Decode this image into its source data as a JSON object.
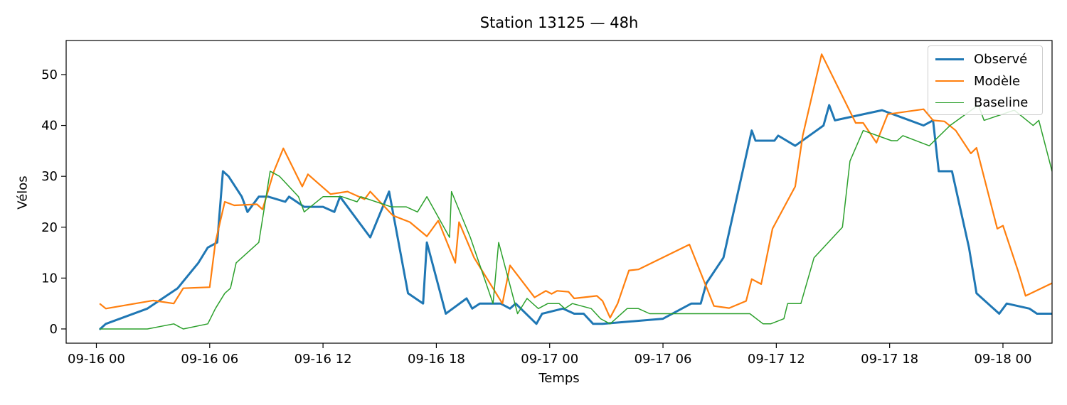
{
  "chart_data": {
    "type": "line",
    "title": "Station 13125 — 48h",
    "xlabel": "Temps",
    "ylabel": "Vélos",
    "x_unit": "hours",
    "xlim": [
      -1.6,
      50.6
    ],
    "ylim": [
      -2.8,
      56.7
    ],
    "x_ticks": [
      {
        "value": 0,
        "label": "09-16 00"
      },
      {
        "value": 6,
        "label": "09-16 06"
      },
      {
        "value": 12,
        "label": "09-16 12"
      },
      {
        "value": 18,
        "label": "09-16 18"
      },
      {
        "value": 24,
        "label": "09-17 00"
      },
      {
        "value": 30,
        "label": "09-17 06"
      },
      {
        "value": 36,
        "label": "09-17 12"
      },
      {
        "value": 42,
        "label": "09-17 18"
      },
      {
        "value": 48,
        "label": "09-18 00"
      }
    ],
    "y_ticks": [
      0,
      10,
      20,
      30,
      40,
      50
    ],
    "grid": false,
    "legend_position": "top-right",
    "series": [
      {
        "name": "Observé",
        "color": "#1f77b4",
        "width": 3,
        "points": [
          [
            0.2,
            0
          ],
          [
            0.5,
            1
          ],
          [
            2.7,
            4
          ],
          [
            4.3,
            8
          ],
          [
            5.4,
            13
          ],
          [
            5.9,
            16
          ],
          [
            6.4,
            17
          ],
          [
            6.7,
            31
          ],
          [
            7,
            30
          ],
          [
            7.7,
            26
          ],
          [
            8,
            23
          ],
          [
            8.6,
            26
          ],
          [
            9.1,
            26
          ],
          [
            10,
            25
          ],
          [
            10.2,
            26
          ],
          [
            11,
            24
          ],
          [
            12,
            24
          ],
          [
            12.6,
            23
          ],
          [
            12.9,
            26
          ],
          [
            14.5,
            18
          ],
          [
            15.5,
            27
          ],
          [
            16.5,
            7
          ],
          [
            17.3,
            5
          ],
          [
            17.5,
            17
          ],
          [
            18.5,
            3
          ],
          [
            19.6,
            6
          ],
          [
            19.9,
            4
          ],
          [
            20.3,
            5
          ],
          [
            21.4,
            5
          ],
          [
            21.9,
            4
          ],
          [
            22.2,
            5
          ],
          [
            23.3,
            1
          ],
          [
            23.6,
            3
          ],
          [
            24.7,
            4
          ],
          [
            25.3,
            3
          ],
          [
            25.8,
            3
          ],
          [
            26.3,
            1
          ],
          [
            26.8,
            1
          ],
          [
            30,
            2
          ],
          [
            31.5,
            5
          ],
          [
            32,
            5
          ],
          [
            32.3,
            9
          ],
          [
            33.2,
            14
          ],
          [
            34.7,
            39
          ],
          [
            34.9,
            37
          ],
          [
            35.9,
            37
          ],
          [
            36.1,
            38
          ],
          [
            37,
            36
          ],
          [
            38.5,
            40
          ],
          [
            38.8,
            44
          ],
          [
            39.1,
            41
          ],
          [
            41.6,
            43
          ],
          [
            43.8,
            40
          ],
          [
            44.3,
            41
          ],
          [
            44.6,
            31
          ],
          [
            45.3,
            31
          ],
          [
            46.2,
            16
          ],
          [
            46.6,
            7
          ],
          [
            47.8,
            3
          ],
          [
            48.2,
            5
          ],
          [
            49.4,
            4
          ],
          [
            49.8,
            3
          ],
          [
            50.6,
            3
          ]
        ]
      },
      {
        "name": "Modèle",
        "color": "#ff7f0e",
        "width": 2.2,
        "points": [
          [
            0.2,
            4.9
          ],
          [
            0.5,
            4
          ],
          [
            3,
            5.6
          ],
          [
            4.1,
            5
          ],
          [
            4.6,
            8
          ],
          [
            6,
            8.2
          ],
          [
            6.3,
            17
          ],
          [
            6.8,
            25
          ],
          [
            7.3,
            24.3
          ],
          [
            8.5,
            24.5
          ],
          [
            8.8,
            23.5
          ],
          [
            9.4,
            31
          ],
          [
            9.9,
            35.5
          ],
          [
            10.9,
            28
          ],
          [
            11.2,
            30.4
          ],
          [
            12.4,
            26.5
          ],
          [
            13.3,
            27
          ],
          [
            14.2,
            25.5
          ],
          [
            14.5,
            27
          ],
          [
            15.7,
            22.3
          ],
          [
            16.6,
            21
          ],
          [
            17.5,
            18.2
          ],
          [
            18.1,
            21.3
          ],
          [
            19,
            13
          ],
          [
            19.2,
            21
          ],
          [
            20,
            14
          ],
          [
            21.5,
            5
          ],
          [
            21.9,
            12.5
          ],
          [
            23.2,
            6.2
          ],
          [
            23.8,
            7.5
          ],
          [
            24.1,
            6.9
          ],
          [
            24.4,
            7.5
          ],
          [
            25,
            7.3
          ],
          [
            25.3,
            6
          ],
          [
            26.5,
            6.5
          ],
          [
            26.8,
            5.5
          ],
          [
            27.2,
            2.2
          ],
          [
            27.6,
            5
          ],
          [
            28.2,
            11.5
          ],
          [
            28.7,
            11.7
          ],
          [
            31.4,
            16.6
          ],
          [
            32.7,
            4.5
          ],
          [
            33.5,
            4.1
          ],
          [
            34.4,
            5.5
          ],
          [
            34.7,
            9.8
          ],
          [
            35.2,
            8.8
          ],
          [
            35.8,
            19.7
          ],
          [
            37,
            28
          ],
          [
            37.4,
            38
          ],
          [
            38.4,
            54
          ],
          [
            40.2,
            40.5
          ],
          [
            40.6,
            40.5
          ],
          [
            41.3,
            36.6
          ],
          [
            41.9,
            42.2
          ],
          [
            43.8,
            43.2
          ],
          [
            44.3,
            41
          ],
          [
            44.9,
            40.8
          ],
          [
            45.5,
            39
          ],
          [
            46.3,
            34.5
          ],
          [
            46.6,
            35.6
          ],
          [
            47.7,
            19.7
          ],
          [
            48,
            20.3
          ],
          [
            48.8,
            11.4
          ],
          [
            49.2,
            6.5
          ],
          [
            50.6,
            9
          ]
        ]
      },
      {
        "name": "Baseline",
        "color": "#2ca02c",
        "width": 1.5,
        "points": [
          [
            0.2,
            0
          ],
          [
            2.7,
            0
          ],
          [
            4.1,
            1
          ],
          [
            4.6,
            0
          ],
          [
            5.9,
            1
          ],
          [
            6.3,
            4
          ],
          [
            6.8,
            7
          ],
          [
            7.1,
            8
          ],
          [
            7.4,
            13
          ],
          [
            8.6,
            17
          ],
          [
            9.2,
            31
          ],
          [
            9.7,
            30
          ],
          [
            10.7,
            26
          ],
          [
            11,
            23
          ],
          [
            12,
            26
          ],
          [
            13,
            26
          ],
          [
            13.8,
            25
          ],
          [
            14,
            26
          ],
          [
            15.6,
            24
          ],
          [
            16.4,
            24
          ],
          [
            17,
            23
          ],
          [
            17.5,
            26
          ],
          [
            18.7,
            18
          ],
          [
            18.8,
            27
          ],
          [
            19.8,
            18
          ],
          [
            21,
            5
          ],
          [
            21.3,
            17
          ],
          [
            22.3,
            3
          ],
          [
            22.8,
            6
          ],
          [
            23.4,
            4
          ],
          [
            23.9,
            5
          ],
          [
            24.5,
            5
          ],
          [
            24.8,
            4
          ],
          [
            25.2,
            5
          ],
          [
            26.2,
            4
          ],
          [
            26.7,
            2
          ],
          [
            27.2,
            1
          ],
          [
            28.1,
            4
          ],
          [
            28.7,
            4
          ],
          [
            29.3,
            3
          ],
          [
            33.6,
            3
          ],
          [
            34.6,
            3
          ],
          [
            35.3,
            1
          ],
          [
            35.7,
            1
          ],
          [
            36.4,
            2
          ],
          [
            36.6,
            5
          ],
          [
            37.3,
            5
          ],
          [
            38,
            14
          ],
          [
            39.5,
            20
          ],
          [
            39.9,
            33
          ],
          [
            40.6,
            39
          ],
          [
            42.1,
            37
          ],
          [
            42.4,
            37
          ],
          [
            42.7,
            38
          ],
          [
            44.1,
            36
          ],
          [
            45.2,
            40
          ],
          [
            46.7,
            44
          ],
          [
            47,
            41
          ],
          [
            48.6,
            43
          ],
          [
            49.6,
            40
          ],
          [
            49.9,
            41
          ],
          [
            50.6,
            31
          ]
        ]
      }
    ]
  }
}
